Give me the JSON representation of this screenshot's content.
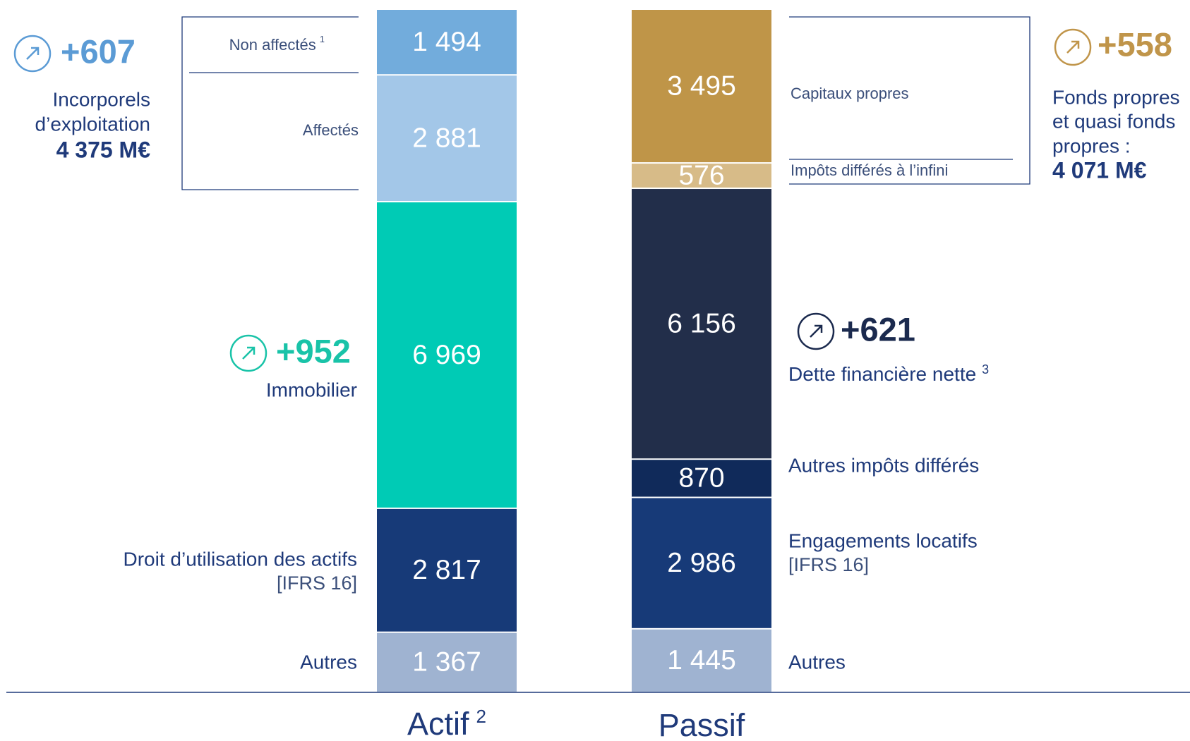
{
  "chart_data": {
    "type": "stacked_column",
    "columns": [
      {
        "name": "Actif",
        "note": "2",
        "segments": [
          {
            "name": "Autres",
            "value": 1367,
            "value_label": "1 367",
            "color": "#9fb3d1"
          },
          {
            "name": "Droit d’utilisation des actifs",
            "sub": "[IFRS 16]",
            "value": 2817,
            "value_label": "2 817",
            "color": "#173a78"
          },
          {
            "name": "Immobilier",
            "value": 6969,
            "value_label": "6 969",
            "color": "#00cbb5"
          },
          {
            "name": "Affectés",
            "value": 2881,
            "value_label": "2 881",
            "color": "#a3c7e8"
          },
          {
            "name": "Non affectés",
            "note": "1",
            "value": 1494,
            "value_label": "1 494",
            "color": "#72acdc"
          }
        ]
      },
      {
        "name": "Passif",
        "segments": [
          {
            "name": "Autres",
            "value": 1445,
            "value_label": "1 445",
            "color": "#9fb3d1"
          },
          {
            "name": "Engagements locatifs",
            "sub": "[IFRS 16]",
            "value": 2986,
            "value_label": "2 986",
            "color": "#173a78"
          },
          {
            "name": "Autres impôts différés",
            "value": 870,
            "color": "#102a5a"
          },
          {
            "name": "Dette financière nette",
            "note": "3",
            "value": 6156,
            "value_label": "6 156",
            "color": "#222e4a"
          },
          {
            "name": "Impôts différés à l’infini",
            "value": 576,
            "color": "#d7bb88"
          },
          {
            "name": "Capitaux propres",
            "value": 3495,
            "value_label": "3 495",
            "color": "#bf9548"
          }
        ]
      }
    ],
    "annotations": [
      {
        "change": "+607",
        "lines": [
          "Incorporels",
          "d’exploitation"
        ],
        "total": "4 375 M€",
        "color": "#5b9bd5"
      },
      {
        "change": "+952",
        "color": "#19c3a8"
      },
      {
        "change": "+621",
        "color": "#1b2a4e"
      },
      {
        "change": "+558",
        "lines": [
          "Fonds propres",
          "et quasi fonds",
          "propres :"
        ],
        "total": "4 071 M€",
        "color": "#c0954a"
      }
    ]
  }
}
